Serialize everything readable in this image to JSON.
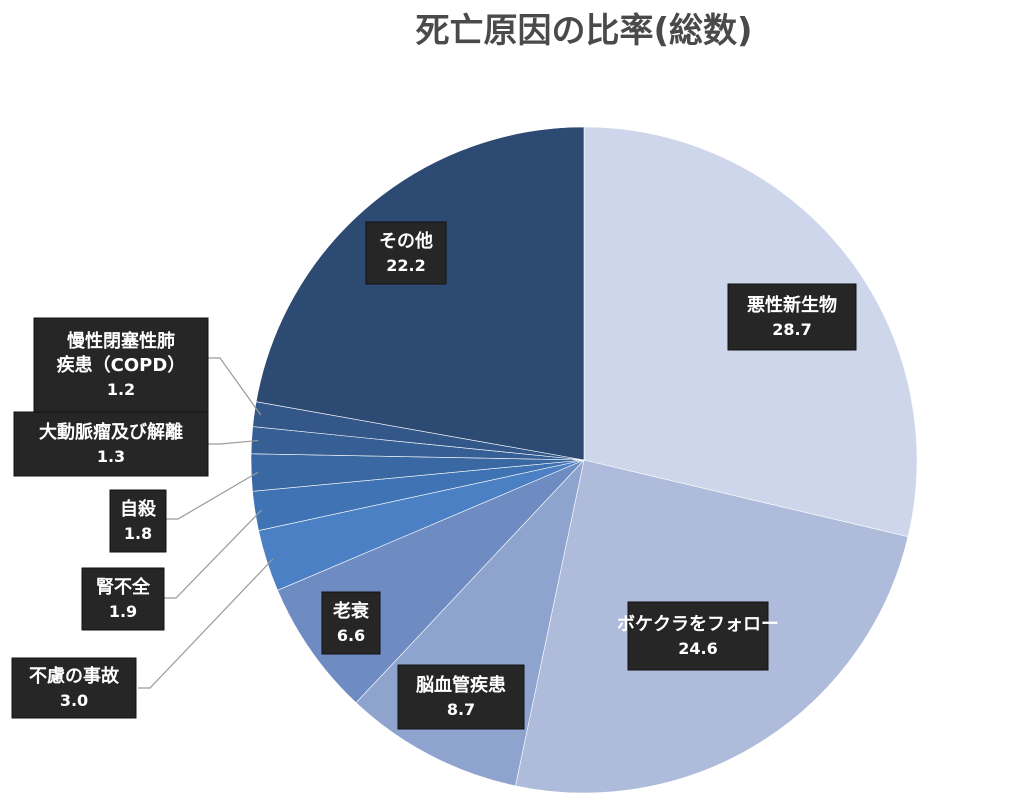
{
  "chart_data": {
    "type": "pie",
    "title": "死亡原因の比率(総数)",
    "start_angle_deg": 0,
    "direction": "clockwise",
    "slices": [
      {
        "label": "悪性新生物",
        "value": 28.7,
        "color": "#cdd6ea"
      },
      {
        "label": "ボケクラをフォロー",
        "value": 24.6,
        "color": "#aebbdb"
      },
      {
        "label": "脳血管疾患",
        "value": 8.7,
        "color": "#8fa3cf"
      },
      {
        "label": "老衰",
        "value": 6.6,
        "color": "#6e8bc2"
      },
      {
        "label": "不慮の事故",
        "value": 3.0,
        "color": "#4b80c4"
      },
      {
        "label": "腎不全",
        "value": 1.9,
        "color": "#3f73b3"
      },
      {
        "label": "自殺",
        "value": 1.8,
        "color": "#3a68a3"
      },
      {
        "label": "大動脈瘤及び解離",
        "value": 1.3,
        "color": "#365f95"
      },
      {
        "label": "慢性閉塞性肺疾患（COPD）",
        "value": 1.2,
        "color": "#325788"
      },
      {
        "label": "その他",
        "value": 22.2,
        "color": "#2d4a73"
      }
    ]
  }
}
